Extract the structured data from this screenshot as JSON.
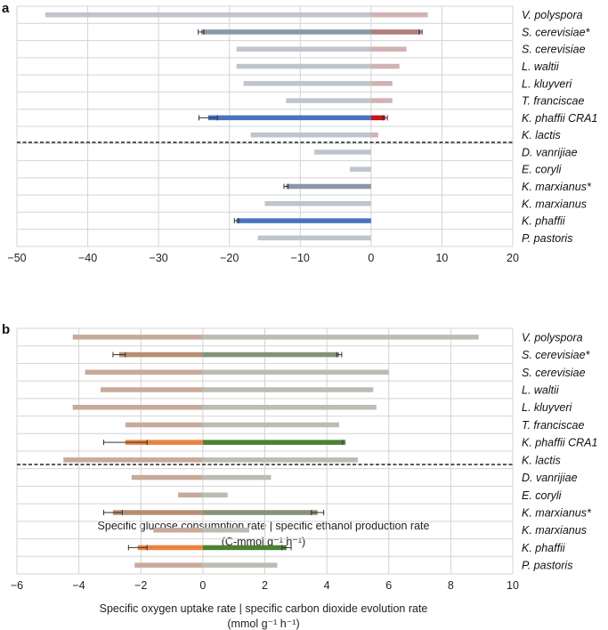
{
  "chart_data": [
    {
      "panel": "a",
      "type": "bar",
      "orientation": "horizontal",
      "categories": [
        "V. polyspora",
        "S. cerevisiae*",
        "S. cerevisiae",
        "L. waltii",
        "L. kluyveri",
        "T. franciscae",
        "K. phaffii CRA1",
        "K. lactis",
        "D. vanrijiae",
        "E. coryli",
        "K. marxianus*",
        "K. marxianus",
        "K. phaffii",
        "P. pastoris"
      ],
      "series": [
        {
          "name": "Specific glucose consumption rate",
          "values": [
            -46,
            -24,
            -19,
            -19,
            -18,
            -12,
            -23,
            -17,
            -8,
            -3,
            -12,
            -15,
            -19,
            -16
          ],
          "errors": [
            null,
            0.4,
            null,
            null,
            null,
            null,
            1.3,
            null,
            null,
            null,
            0.3,
            null,
            0.3,
            null
          ],
          "colors": [
            "#bfc4cd",
            "#8b97a9",
            "#bfc4cd",
            "#bfc4cd",
            "#bfc4cd",
            "#bfc4cd",
            "#4a72c0",
            "#bfc4cd",
            "#bfc4cd",
            "#bfc4cd",
            "#8b97a9",
            "#bfc4cd",
            "#4a72c0",
            "#bfc4cd"
          ]
        },
        {
          "name": "Specific ethanol production rate",
          "values": [
            8,
            7,
            5,
            4,
            3,
            3,
            2,
            1,
            0,
            0,
            0,
            0,
            0,
            0
          ],
          "errors": [
            null,
            0.2,
            null,
            null,
            null,
            null,
            0.3,
            null,
            null,
            null,
            null,
            null,
            null,
            null
          ],
          "colors": [
            "#d0b2b2",
            "#b07c7c",
            "#d0b2b2",
            "#d0b2b2",
            "#d0b2b2",
            "#d0b2b2",
            "#c61515",
            "#d0b2b2",
            "#d0b2b2",
            "#d0b2b2",
            "#d0b2b2",
            "#d0b2b2",
            "#d0b2b2",
            "#d0b2b2"
          ]
        }
      ],
      "xlim": [
        -50,
        20
      ],
      "xticks": [
        -50,
        -40,
        -30,
        -20,
        -10,
        0,
        10,
        20
      ],
      "xlabel": "Specific glucose consumption rate | specific ethanol production rate",
      "xunit": "(C-mmol g⁻¹ h⁻¹)",
      "divider_after": 8,
      "grid": true
    },
    {
      "panel": "b",
      "type": "bar",
      "orientation": "horizontal",
      "categories": [
        "V. polyspora",
        "S. cerevisiae*",
        "S. cerevisiae",
        "L. waltii",
        "L. kluyveri",
        "T. franciscae",
        "K. phaffii CRA1",
        "K. lactis",
        "D. vanrijiae",
        "E. coryli",
        "K. marxianus*",
        "K. marxianus",
        "K. phaffii",
        "P. pastoris"
      ],
      "series": [
        {
          "name": "Specific oxygen uptake rate",
          "values": [
            -4.2,
            -2.7,
            -3.8,
            -3.3,
            -4.2,
            -2.5,
            -2.5,
            -4.5,
            -2.3,
            -0.8,
            -2.9,
            -1.6,
            -2.1,
            -2.2
          ],
          "errors": [
            null,
            0.2,
            null,
            null,
            null,
            null,
            0.7,
            null,
            null,
            null,
            0.3,
            null,
            0.3,
            null
          ],
          "colors": [
            "#c7aa9b",
            "#b58e72",
            "#c7aa9b",
            "#c7aa9b",
            "#c7aa9b",
            "#c7aa9b",
            "#e9843f",
            "#c7aa9b",
            "#c7aa9b",
            "#c7aa9b",
            "#b58e72",
            "#c7aa9b",
            "#e9843f",
            "#c7aa9b"
          ]
        },
        {
          "name": "Specific carbon dioxide evolution rate",
          "values": [
            8.9,
            4.4,
            6.0,
            5.5,
            5.6,
            4.4,
            4.55,
            5.0,
            2.2,
            0.8,
            3.7,
            1.5,
            2.7,
            2.4
          ],
          "errors": [
            null,
            0.08,
            null,
            null,
            null,
            null,
            0.03,
            null,
            null,
            null,
            0.2,
            null,
            0.15,
            null
          ],
          "colors": [
            "#b9bdb4",
            "#84927a",
            "#b9bdb4",
            "#b9bdb4",
            "#b9bdb4",
            "#b9bdb4",
            "#4c8033",
            "#b9bdb4",
            "#b9bdb4",
            "#b9bdb4",
            "#84927a",
            "#b9bdb4",
            "#4c8033",
            "#b9bdb4"
          ]
        }
      ],
      "xlim": [
        -6,
        10
      ],
      "xticks": [
        -6,
        -4,
        -2,
        0,
        2,
        4,
        6,
        8,
        10
      ],
      "xlabel": "Specific oxygen uptake rate | specific carbon dioxide evolution rate",
      "xunit": "(mmol g⁻¹ h⁻¹)",
      "divider_after": 8,
      "grid": true
    }
  ]
}
